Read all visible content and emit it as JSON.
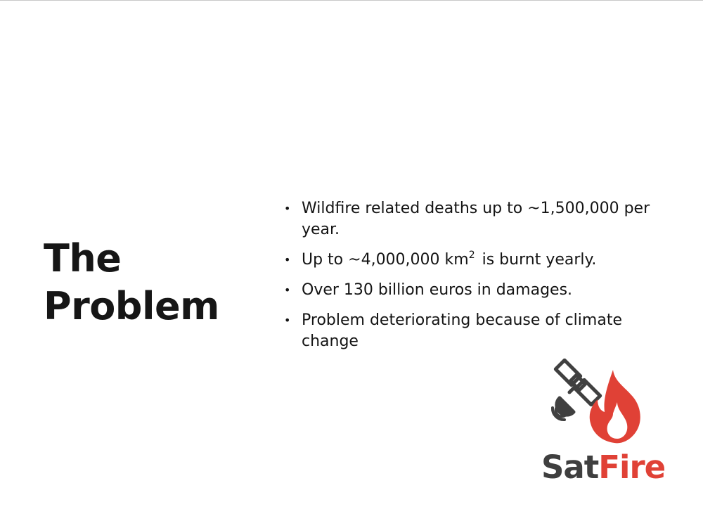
{
  "slide": {
    "title_line1": "The",
    "title_line2": "Problem",
    "bullets": [
      {
        "text": "Wildfire related deaths up to ~1,500,000 per year."
      },
      {
        "text_before": "Up to ~4,000,000 km",
        "superscript": "2",
        "text_after": " is burnt yearly."
      },
      {
        "text": "Over 130 billion euros in damages."
      },
      {
        "text": "Problem deteriorating because of climate change"
      }
    ],
    "bullet_symbol": "•"
  },
  "logo": {
    "text_sat": "Sat",
    "text_fire": "Fire",
    "icons": [
      "satellite-icon",
      "flame-icon"
    ],
    "colors": {
      "sat": "#3f3f3f",
      "fire": "#e04136"
    }
  }
}
